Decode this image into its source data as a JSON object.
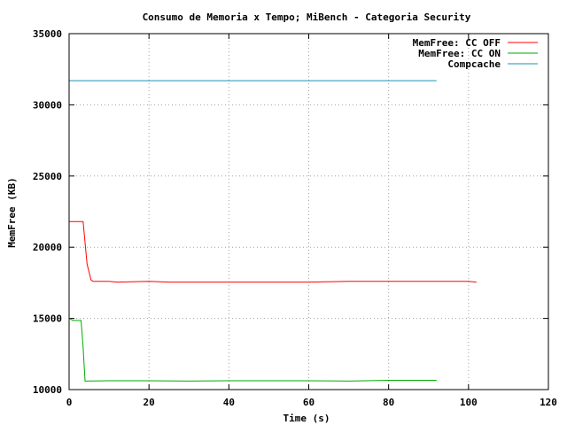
{
  "chart_data": {
    "type": "line",
    "title": "Consumo de Memoria x Tempo; MiBench - Categoria Security",
    "xlabel": "Time (s)",
    "ylabel": "MemFree (KB)",
    "xlim": [
      0,
      120
    ],
    "ylim": [
      10000,
      35000
    ],
    "xticks": [
      0,
      20,
      40,
      60,
      80,
      100,
      120
    ],
    "yticks": [
      10000,
      15000,
      20000,
      25000,
      30000,
      35000
    ],
    "grid": true,
    "legend_position": "top-right",
    "series": [
      {
        "name": "MemFree: CC OFF",
        "color": "#ff0000",
        "x": [
          0,
          3.5,
          4.5,
          5.5,
          6,
          10,
          12,
          20,
          25,
          30,
          35,
          40,
          60,
          70,
          80,
          90,
          100,
          102
        ],
        "y": [
          21800,
          21800,
          18800,
          17700,
          17600,
          17600,
          17550,
          17600,
          17550,
          17550,
          17550,
          17550,
          17550,
          17600,
          17600,
          17600,
          17600,
          17550
        ]
      },
      {
        "name": "MemFree: CC ON",
        "color": "#00aa00",
        "x": [
          0,
          1,
          1.5,
          3,
          3.5,
          4,
          10,
          12,
          20,
          30,
          40,
          50,
          60,
          70,
          80,
          92
        ],
        "y": [
          15000,
          14850,
          14850,
          14850,
          13000,
          10600,
          10620,
          10620,
          10620,
          10600,
          10620,
          10620,
          10620,
          10600,
          10650,
          10650
        ]
      },
      {
        "name": "Compcache",
        "color": "#1a90b8",
        "x": [
          0,
          92
        ],
        "y": [
          31700,
          31700
        ]
      }
    ]
  }
}
